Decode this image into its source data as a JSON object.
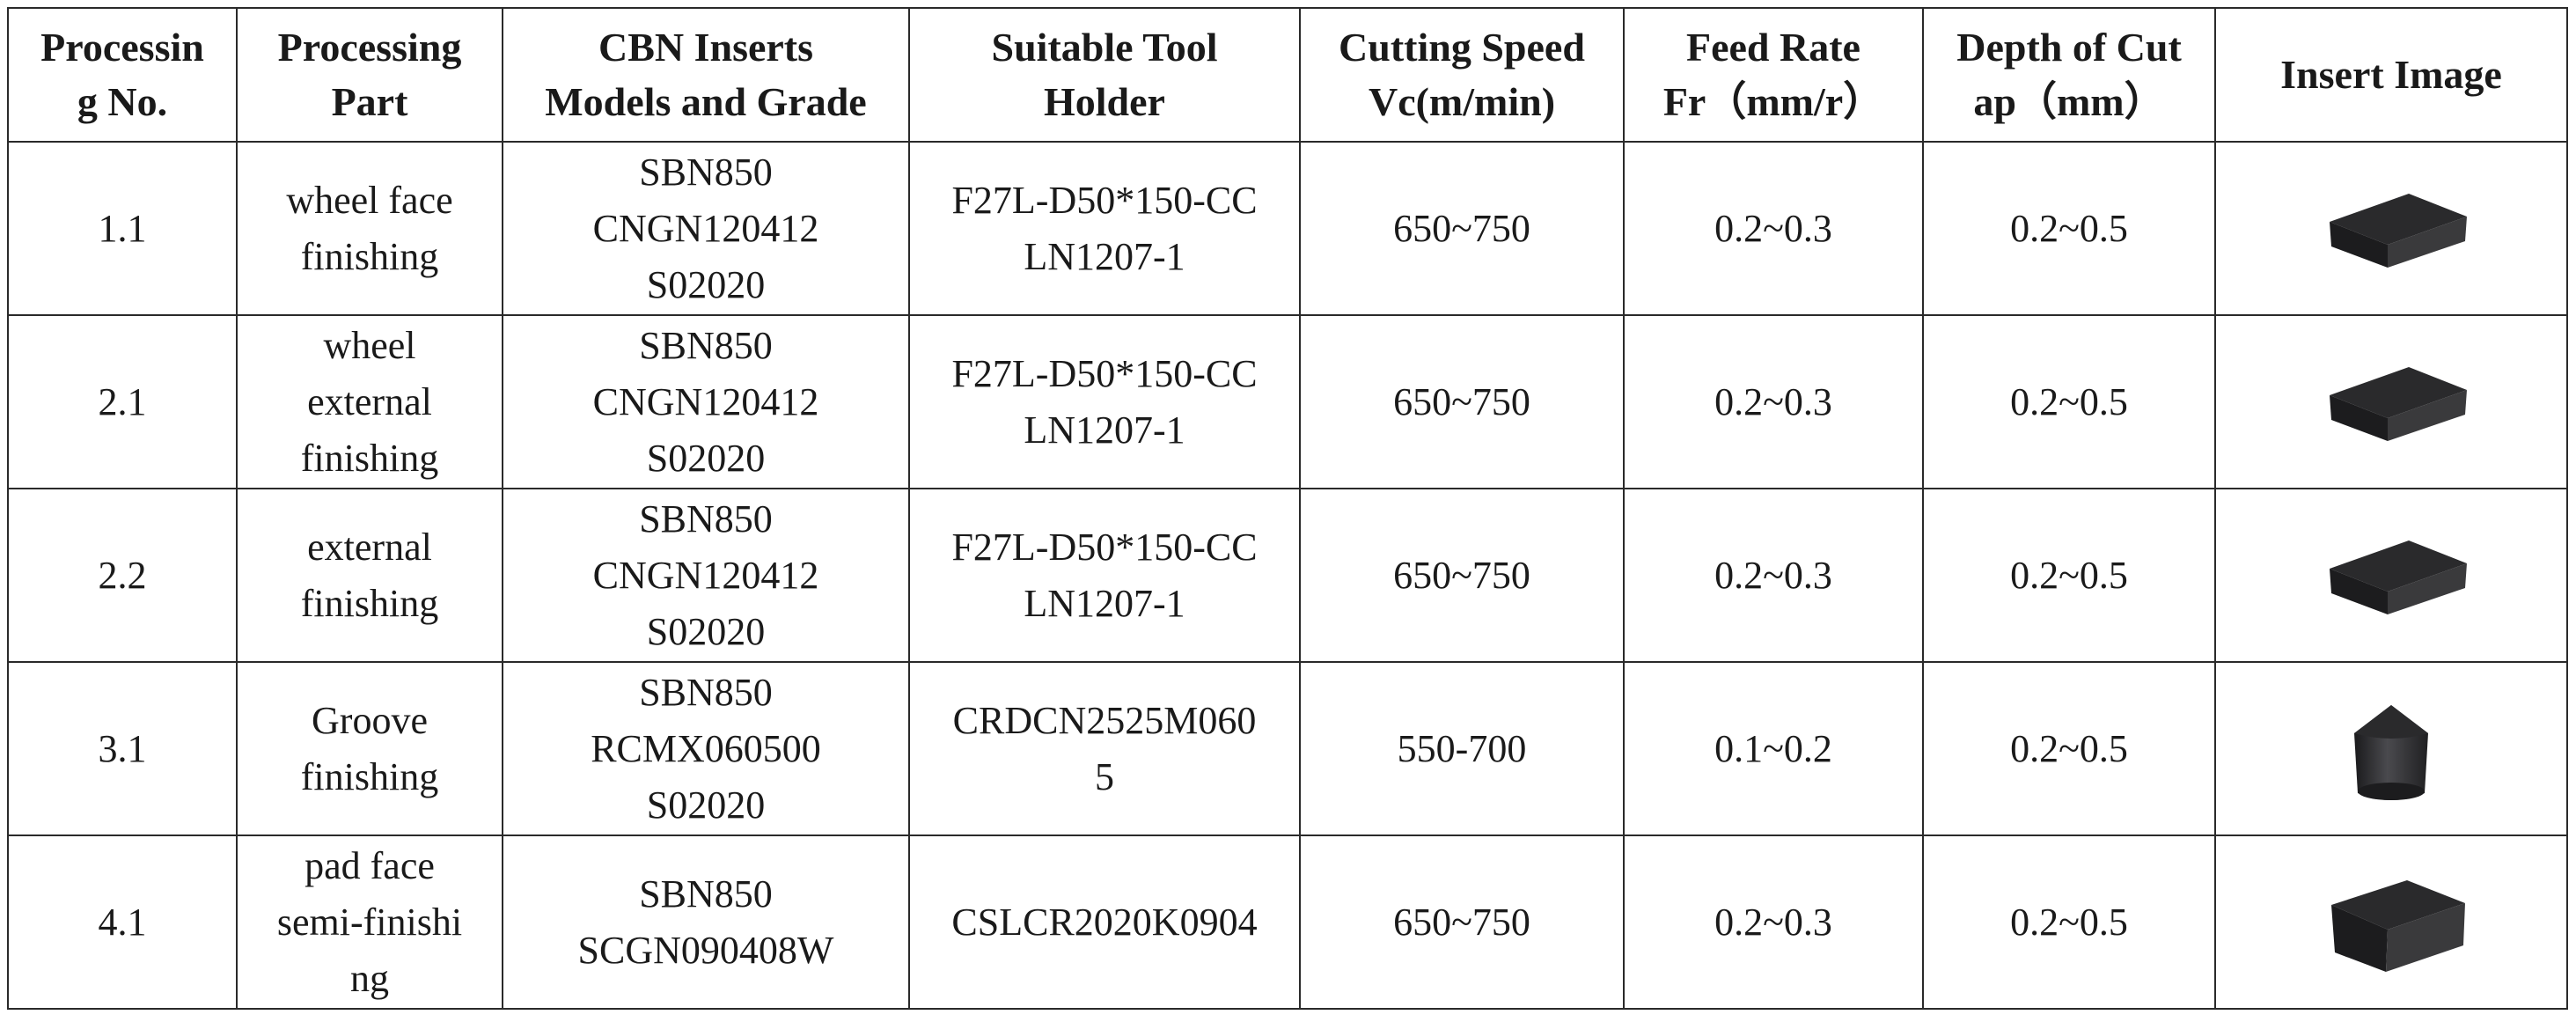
{
  "table": {
    "headers": [
      [
        "Processin",
        "g No."
      ],
      [
        "Processing",
        "Part"
      ],
      [
        "CBN Inserts",
        "Models and Grade"
      ],
      [
        "Suitable Tool",
        "Holder"
      ],
      [
        "Cutting Speed",
        "Vc(m/min)"
      ],
      [
        "Feed Rate",
        "Fr（mm/r）"
      ],
      [
        "Depth of Cut",
        "ap（mm）"
      ],
      [
        "Insert Image"
      ]
    ],
    "rows": [
      {
        "no": "1.1",
        "part": [
          "wheel face",
          "finishing"
        ],
        "insert": [
          "SBN850",
          "CNGN120412",
          "S02020"
        ],
        "holder": [
          "F27L-D50*150-CC",
          "LN1207-1"
        ],
        "speed": "650~750",
        "feed": "0.2~0.3",
        "depth": "0.2~0.5",
        "image_icon": "square-insert-icon"
      },
      {
        "no": "2.1",
        "part": [
          "wheel",
          "external",
          "finishing"
        ],
        "insert": [
          "SBN850",
          "CNGN120412",
          "S02020"
        ],
        "holder": [
          "F27L-D50*150-CC",
          "LN1207-1"
        ],
        "speed": "650~750",
        "feed": "0.2~0.3",
        "depth": "0.2~0.5",
        "image_icon": "square-insert-icon"
      },
      {
        "no": "2.2",
        "part": [
          "external",
          "finishing"
        ],
        "insert": [
          "SBN850",
          "CNGN120412",
          "S02020"
        ],
        "holder": [
          "F27L-D50*150-CC",
          "LN1207-1"
        ],
        "speed": "650~750",
        "feed": "0.2~0.3",
        "depth": "0.2~0.5",
        "image_icon": "square-insert-icon"
      },
      {
        "no": "3.1",
        "part": [
          "Groove",
          "finishing"
        ],
        "insert": [
          "SBN850",
          "RCMX060500",
          "S02020"
        ],
        "holder": [
          "CRDCN2525M060",
          "5"
        ],
        "speed": "550-700",
        "feed": "0.1~0.2",
        "depth": "0.2~0.5",
        "image_icon": "round-insert-icon"
      },
      {
        "no": "4.1",
        "part": [
          "pad face",
          "semi-finishi",
          "ng"
        ],
        "insert": [
          "SBN850",
          "SCGN090408W"
        ],
        "holder": [
          "CSLCR2020K0904"
        ],
        "speed": "650~750",
        "feed": "0.2~0.3",
        "depth": "0.2~0.5",
        "image_icon": "square-thick-insert-icon"
      }
    ]
  },
  "colors": {
    "border": "#2a2a2a",
    "insert_body": "#3a3a3c",
    "insert_top": "#2a2a2c",
    "insert_side": "#1c1c1e"
  }
}
